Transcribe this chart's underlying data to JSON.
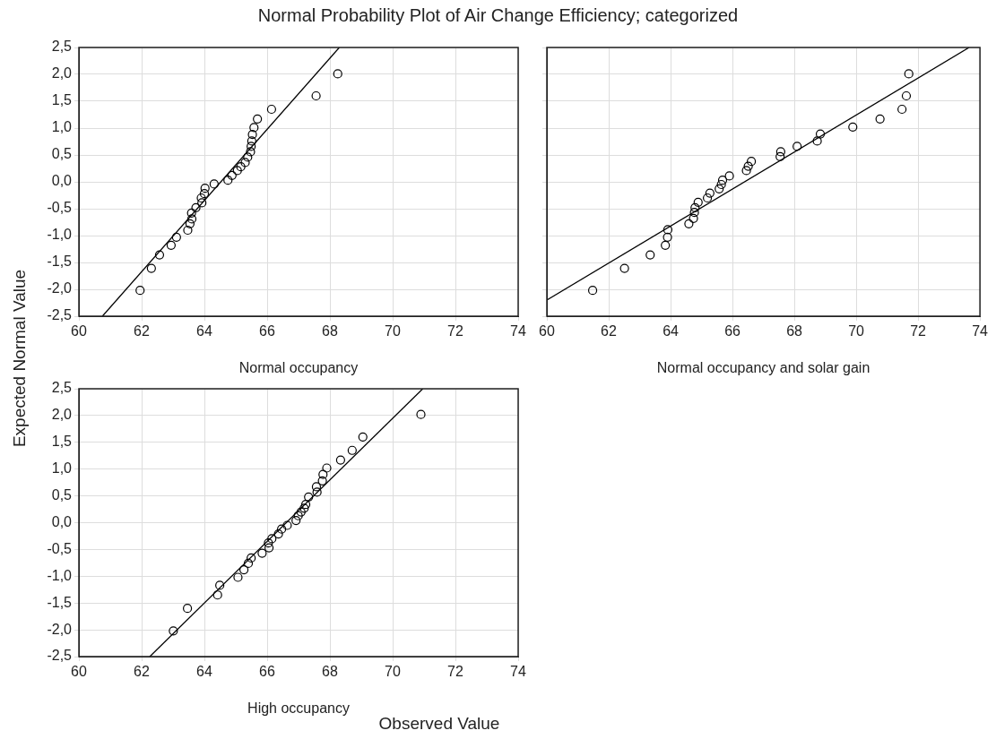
{
  "chart_data": [
    {
      "type": "scatter",
      "title": "Normal Probability Plot of Air Change Efficiency; categorized",
      "ylabel": "Expected Normal Value",
      "xlabel": "Normal occupancy",
      "xlim": [
        60,
        74
      ],
      "xticks": [
        60,
        62,
        64,
        66,
        68,
        70,
        72,
        74
      ],
      "ylim": [
        -2.5,
        2.5
      ],
      "yticks": [
        {
          "value": -2.5,
          "label": "-2,5"
        },
        {
          "value": -2,
          "label": "-2,0"
        },
        {
          "value": -1.5,
          "label": "-1,5"
        },
        {
          "value": -1,
          "label": "-1,0"
        },
        {
          "value": -0.5,
          "label": "-0,5"
        },
        {
          "value": 0,
          "label": "0,0"
        },
        {
          "value": 0.5,
          "label": "0,5"
        },
        {
          "value": 1,
          "label": "1,0"
        },
        {
          "value": 1.5,
          "label": "1,5"
        },
        {
          "value": 2,
          "label": "2,0"
        },
        {
          "value": 2.5,
          "label": "2,5"
        }
      ],
      "grid": true,
      "line_style": "solid",
      "series": [
        {
          "type": "scatter",
          "marker": "circle",
          "color": "#000000",
          "x": [
            61.95,
            62.31,
            62.57,
            62.94,
            63.11,
            63.47,
            63.54,
            63.6,
            63.59,
            63.73,
            63.92,
            63.9,
            64.0,
            64.02,
            64.31,
            64.75,
            64.88,
            65.05,
            65.16,
            65.3,
            65.38,
            65.47,
            65.49,
            65.51,
            65.53,
            65.58,
            65.69,
            66.14,
            67.56,
            68.25
          ],
          "values": [
            -2.02,
            -1.61,
            -1.36,
            -1.18,
            -1.03,
            -0.9,
            -0.78,
            -0.69,
            -0.58,
            -0.48,
            -0.39,
            -0.3,
            -0.22,
            -0.12,
            -0.04,
            0.03,
            0.12,
            0.21,
            0.28,
            0.36,
            0.46,
            0.56,
            0.66,
            0.76,
            0.88,
            1.01,
            1.17,
            1.35,
            1.6,
            2.01
          ]
        },
        {
          "type": "line",
          "marker": "none",
          "color": "#000000",
          "x": [
            60.75,
            68.3
          ],
          "values": [
            -2.5,
            2.5
          ]
        }
      ]
    },
    {
      "type": "scatter",
      "xlabel": "Normal occupancy and solar gain",
      "xlim": [
        60,
        74
      ],
      "xticks": [
        60,
        62,
        64,
        66,
        68,
        70,
        72,
        74
      ],
      "ylim": [
        -2.5,
        2.5
      ],
      "yticks": [
        -2.5,
        -2,
        -1.5,
        -1,
        -0.5,
        0,
        0.5,
        1,
        1.5,
        2,
        2.5
      ],
      "tick_labels": "x",
      "grid": true,
      "line_style": "solid",
      "series": [
        {
          "type": "scatter",
          "marker": "circle",
          "color": "#000000",
          "x": [
            61.48,
            62.51,
            63.34,
            63.83,
            63.9,
            63.91,
            64.59,
            64.74,
            64.77,
            64.79,
            64.89,
            65.19,
            65.27,
            65.57,
            65.64,
            65.68,
            65.9,
            66.45,
            66.51,
            66.61,
            67.54,
            67.56,
            68.09,
            68.74,
            68.84,
            69.89,
            70.77,
            71.48,
            71.62,
            71.7
          ],
          "values": [
            -2.02,
            -1.61,
            -1.36,
            -1.18,
            -1.03,
            -0.89,
            -0.78,
            -0.68,
            -0.57,
            -0.48,
            -0.38,
            -0.3,
            -0.21,
            -0.13,
            -0.05,
            0.03,
            0.11,
            0.21,
            0.29,
            0.38,
            0.47,
            0.56,
            0.66,
            0.76,
            0.89,
            1.02,
            1.17,
            1.35,
            1.6,
            2.01
          ]
        },
        {
          "type": "line",
          "marker": "none",
          "color": "#000000",
          "x": [
            60,
            73.65
          ],
          "values": [
            -2.2,
            2.5
          ]
        }
      ]
    },
    {
      "type": "scatter",
      "xlabel": "High occupancy",
      "annotations": [
        "Observed Value"
      ],
      "xlim": [
        60,
        74
      ],
      "xticks": [
        60,
        62,
        64,
        66,
        68,
        70,
        72,
        74
      ],
      "ylim": [
        -2.5,
        2.5
      ],
      "yticks": [
        {
          "value": -2.5,
          "label": "-2,5"
        },
        {
          "value": -2,
          "label": "-2,0"
        },
        {
          "value": -1.5,
          "label": "-1,5"
        },
        {
          "value": -1,
          "label": "-1,0"
        },
        {
          "value": -0.5,
          "label": "-0,5"
        },
        {
          "value": 0,
          "label": "0,0"
        },
        {
          "value": 0.5,
          "label": "0,5"
        },
        {
          "value": 1,
          "label": "1,0"
        },
        {
          "value": 1.5,
          "label": "1,5"
        },
        {
          "value": 2,
          "label": "2,0"
        },
        {
          "value": 2.5,
          "label": "2,5"
        }
      ],
      "grid": true,
      "line_style": "solid",
      "series": [
        {
          "type": "scatter",
          "marker": "circle",
          "color": "#000000",
          "x": [
            63.01,
            63.46,
            64.42,
            64.49,
            65.07,
            65.26,
            65.4,
            65.49,
            65.84,
            66.06,
            66.04,
            66.15,
            66.36,
            66.46,
            66.64,
            66.92,
            66.99,
            67.08,
            67.18,
            67.23,
            67.32,
            67.59,
            67.57,
            67.76,
            67.78,
            67.9,
            68.34,
            68.71,
            69.05,
            70.9
          ],
          "values": [
            -2.02,
            -1.6,
            -1.35,
            -1.17,
            -1.02,
            -0.88,
            -0.76,
            -0.66,
            -0.57,
            -0.47,
            -0.38,
            -0.3,
            -0.21,
            -0.12,
            -0.05,
            0.04,
            0.13,
            0.2,
            0.27,
            0.34,
            0.48,
            0.57,
            0.67,
            0.78,
            0.9,
            1.02,
            1.17,
            1.35,
            1.6,
            2.02
          ]
        },
        {
          "type": "line",
          "marker": "none",
          "color": "#000000",
          "x": [
            62.26,
            70.96
          ],
          "values": [
            -2.5,
            2.5
          ]
        }
      ]
    }
  ]
}
